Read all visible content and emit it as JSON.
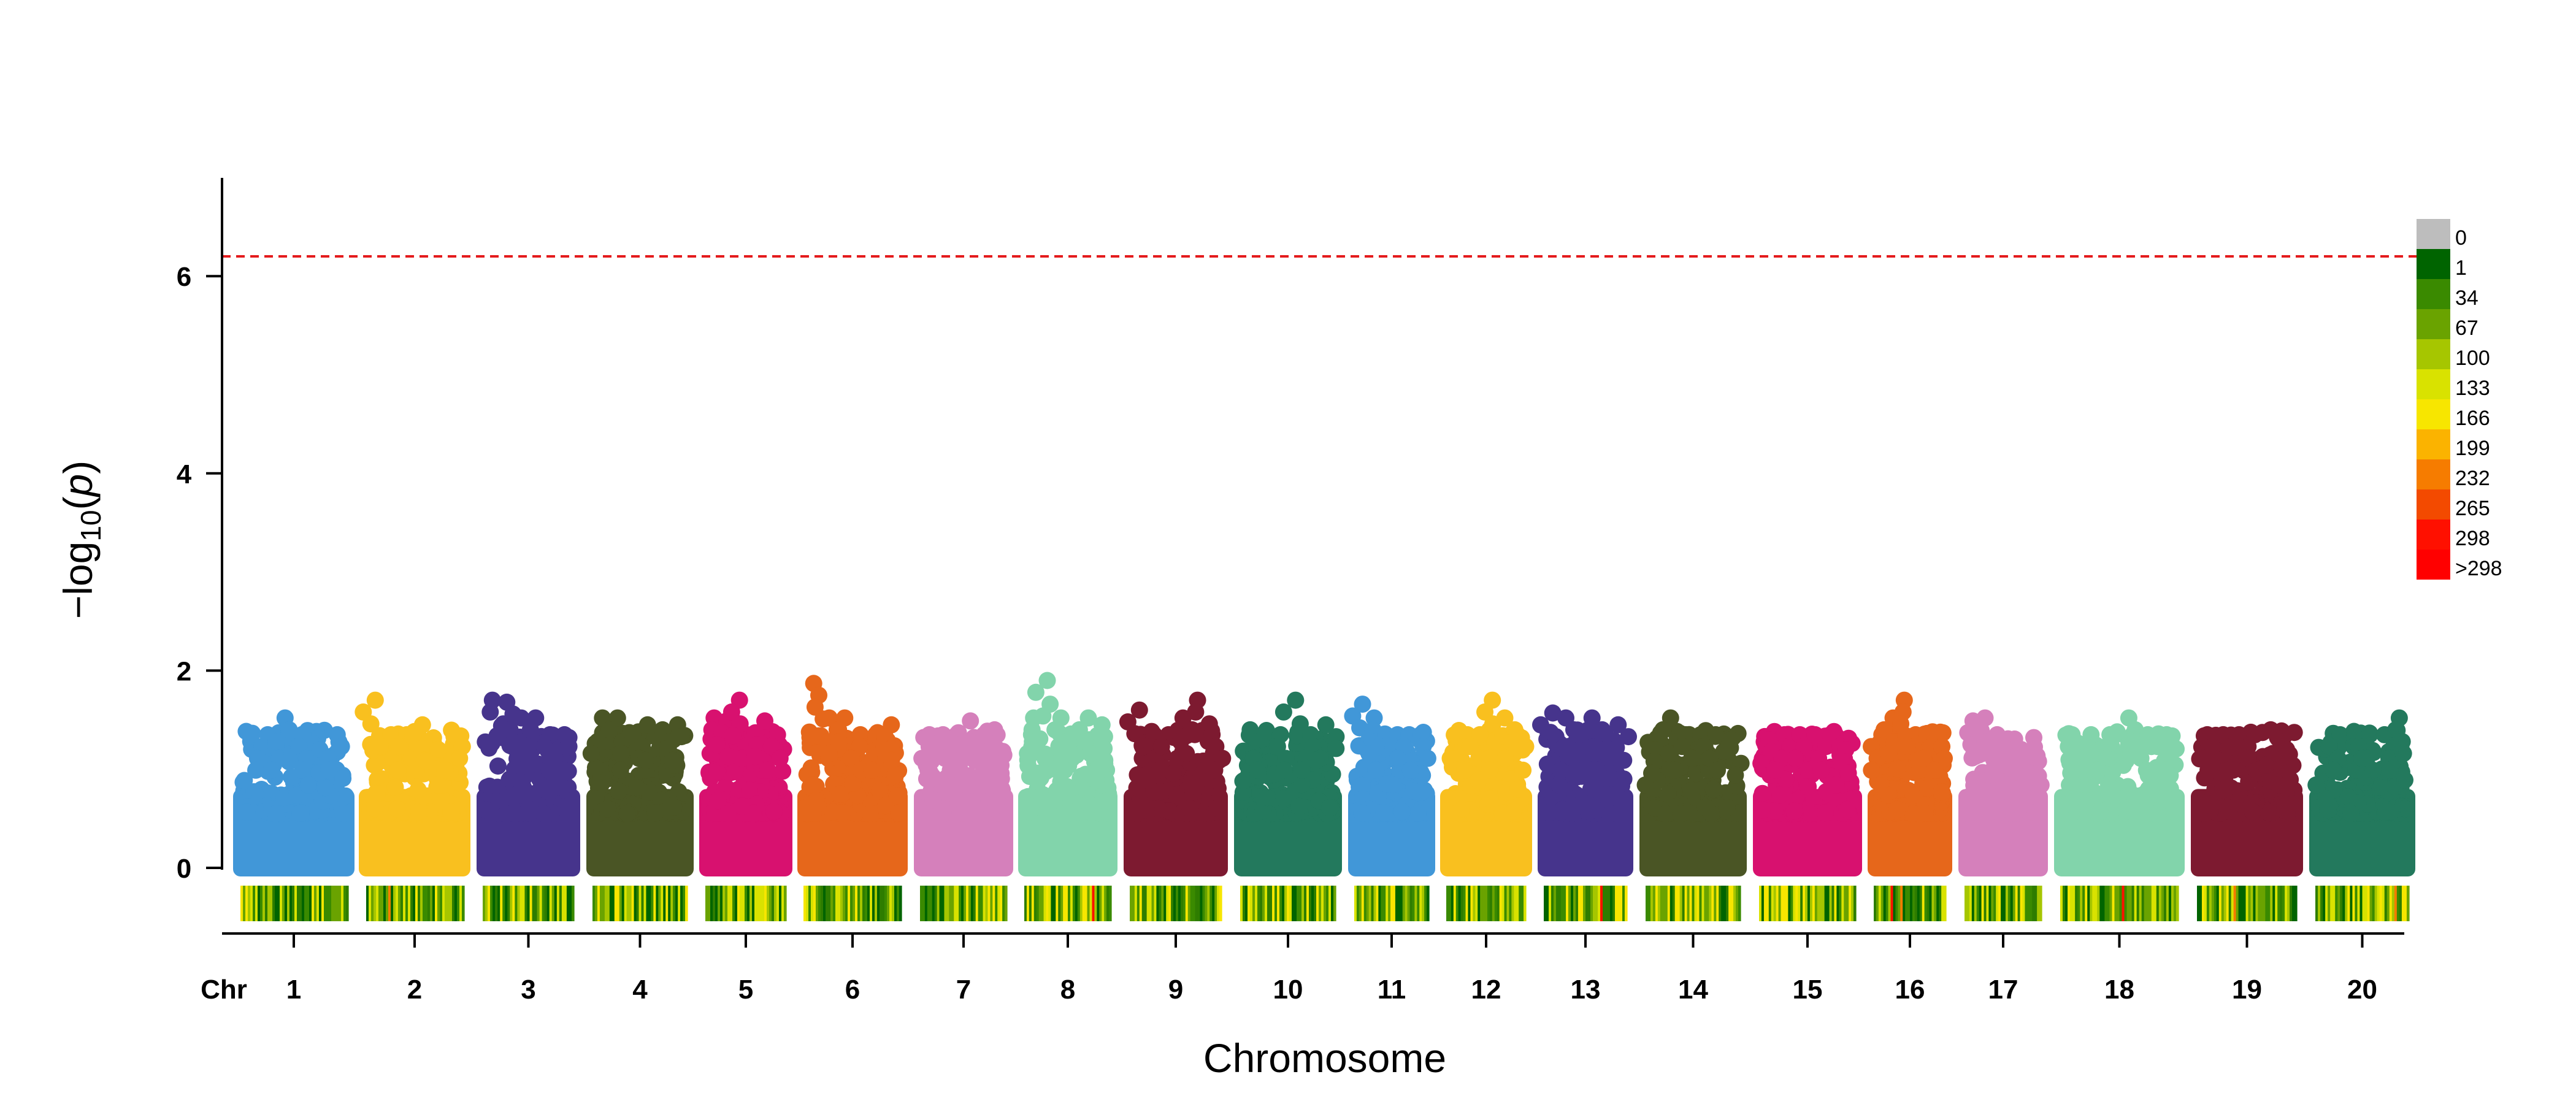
{
  "chart_data": {
    "type": "scatter",
    "subtype": "manhattan",
    "xlabel": "Chromosome",
    "ylabel": "-log10(p)",
    "chr_label": "Chr",
    "ylim": [
      0,
      7
    ],
    "yticks": [
      0,
      2,
      4,
      6
    ],
    "threshold": 6.2,
    "threshold_color": "#e41a1c",
    "grid": false,
    "legend_position": "right",
    "chromosomes": [
      {
        "label": "1",
        "color": "#4197d8",
        "max": 1.52,
        "peaks": [
          1.35,
          1.35,
          1.52,
          1.35,
          1.2,
          1.35
        ]
      },
      {
        "label": "2",
        "color": "#f9c01f",
        "max": 1.7,
        "peaks": [
          1.7,
          1.35,
          1.35,
          1.45,
          1.2,
          1.35
        ]
      },
      {
        "label": "3",
        "color": "#46348c",
        "max": 1.7,
        "peaks": [
          1.7,
          1.68,
          1.52,
          1.52,
          1.35,
          1.35
        ]
      },
      {
        "label": "4",
        "color": "#4a5525",
        "max": 1.52,
        "peaks": [
          1.52,
          1.52,
          1.35,
          1.45,
          1.4,
          1.45
        ]
      },
      {
        "label": "5",
        "color": "#d8116f",
        "max": 1.7,
        "peaks": [
          1.52,
          1.49,
          1.7,
          1.35,
          1.49,
          1.35
        ]
      },
      {
        "label": "6",
        "color": "#e6671b",
        "max": 1.87,
        "peaks": [
          1.87,
          1.52,
          1.52,
          1.35,
          1.35,
          1.45
        ]
      },
      {
        "label": "7",
        "color": "#d580bb",
        "max": 1.49,
        "peaks": [
          1.35,
          1.35,
          1.35,
          1.49,
          1.35,
          1.2
        ]
      },
      {
        "label": "8",
        "color": "#82d4ab",
        "max": 1.9,
        "peaks": [
          1.52,
          1.9,
          1.52,
          1.35,
          1.52,
          1.45
        ]
      },
      {
        "label": "9",
        "color": "#7d1a30",
        "max": 1.7,
        "peaks": [
          1.6,
          1.35,
          1.35,
          1.52,
          1.7,
          1.35
        ]
      },
      {
        "label": "10",
        "color": "#23795d",
        "max": 1.7,
        "peaks": [
          1.4,
          1.35,
          1.35,
          1.7,
          1.35,
          1.45
        ]
      },
      {
        "label": "11",
        "color": "#4197d8",
        "max": 1.66,
        "peaks": [
          1.66,
          1.52,
          1.35,
          1.35,
          1.35,
          1.35
        ]
      },
      {
        "label": "12",
        "color": "#f9c01f",
        "max": 1.7,
        "peaks": [
          1.35,
          1.35,
          1.35,
          1.7,
          1.52,
          1.35
        ]
      },
      {
        "label": "13",
        "color": "#46348c",
        "max": 1.57,
        "peaks": [
          1.57,
          1.52,
          1.35,
          1.52,
          1.35,
          1.45
        ]
      },
      {
        "label": "14",
        "color": "#4a5525",
        "max": 1.52,
        "peaks": [
          1.2,
          1.52,
          1.35,
          1.35,
          1.35,
          1.3
        ]
      },
      {
        "label": "15",
        "color": "#d8116f",
        "max": 1.35,
        "peaks": [
          1.3,
          1.35,
          1.35,
          1.35,
          1.35,
          1.2
        ]
      },
      {
        "label": "16",
        "color": "#e6671b",
        "max": 1.7,
        "peaks": [
          1.35,
          1.52,
          1.7,
          1.35,
          1.35,
          1.35
        ]
      },
      {
        "label": "17",
        "color": "#d580bb",
        "max": 1.52,
        "peaks": [
          1.49,
          1.52,
          1.35,
          1.2,
          1.2,
          1.2
        ]
      },
      {
        "label": "18",
        "color": "#82d4ab",
        "max": 1.52,
        "peaks": [
          1.35,
          1.35,
          1.35,
          1.52,
          1.35,
          1.35
        ]
      },
      {
        "label": "19",
        "color": "#7d1a30",
        "max": 1.4,
        "peaks": [
          1.35,
          1.35,
          1.35,
          1.35,
          1.4,
          1.2
        ]
      },
      {
        "label": "20",
        "color": "#23795d",
        "max": 1.52,
        "peaks": [
          1.2,
          1.35,
          1.35,
          1.35,
          1.35,
          1.52
        ]
      }
    ],
    "density_legend": {
      "labels": [
        "0",
        "1",
        "34",
        "67",
        "100",
        "133",
        "166",
        "199",
        "232",
        "265",
        "298",
        ">298"
      ],
      "colors": [
        "#bdbdbd",
        "#006400",
        "#3a8a00",
        "#6aa300",
        "#a6c600",
        "#d9e200",
        "#f7e600",
        "#fbb300",
        "#f67c00",
        "#f34a00",
        "#ff1000",
        "#ff0000"
      ]
    }
  }
}
